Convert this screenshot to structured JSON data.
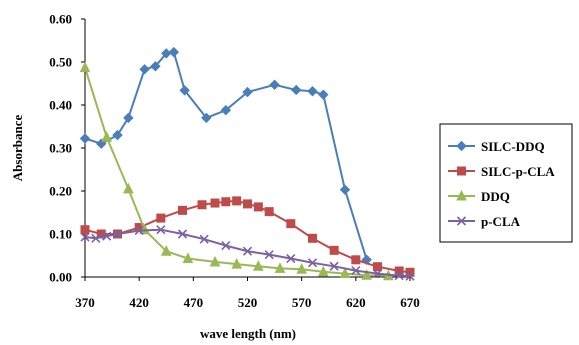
{
  "chart_data": {
    "type": "line",
    "xlabel": "wave length (nm)",
    "ylabel": "Absorbance",
    "xlim": [
      370,
      670
    ],
    "ylim": [
      0,
      0.6
    ],
    "x_ticks": [
      "370",
      "420",
      "470",
      "520",
      "570",
      "620",
      "670"
    ],
    "y_ticks": [
      "0.00",
      "0.10",
      "0.20",
      "0.30",
      "0.40",
      "0.50",
      "0.60"
    ],
    "grid": false,
    "legend_position": "right",
    "series": [
      {
        "name": "SILC-DDQ",
        "color": "#4a7ebb",
        "marker": "diamond",
        "points": [
          [
            370,
            0.322
          ],
          [
            385,
            0.31
          ],
          [
            400,
            0.33
          ],
          [
            410,
            0.37
          ],
          [
            425,
            0.483
          ],
          [
            435,
            0.49
          ],
          [
            445,
            0.52
          ],
          [
            452,
            0.523
          ],
          [
            462,
            0.434
          ],
          [
            482,
            0.37
          ],
          [
            500,
            0.388
          ],
          [
            520,
            0.43
          ],
          [
            545,
            0.447
          ],
          [
            565,
            0.435
          ],
          [
            580,
            0.432
          ],
          [
            590,
            0.424
          ],
          [
            610,
            0.203
          ],
          [
            630,
            0.04
          ]
        ]
      },
      {
        "name": "SILC-p-CLA",
        "color": "#be4b48",
        "marker": "square",
        "points": [
          [
            370,
            0.11
          ],
          [
            385,
            0.1
          ],
          [
            400,
            0.1
          ],
          [
            420,
            0.115
          ],
          [
            440,
            0.137
          ],
          [
            460,
            0.155
          ],
          [
            478,
            0.168
          ],
          [
            490,
            0.172
          ],
          [
            500,
            0.175
          ],
          [
            510,
            0.177
          ],
          [
            520,
            0.17
          ],
          [
            530,
            0.163
          ],
          [
            540,
            0.152
          ],
          [
            560,
            0.124
          ],
          [
            580,
            0.09
          ],
          [
            600,
            0.062
          ],
          [
            620,
            0.04
          ],
          [
            640,
            0.024
          ],
          [
            660,
            0.014
          ],
          [
            670,
            0.011
          ]
        ]
      },
      {
        "name": "DDQ",
        "color": "#98b954",
        "marker": "triangle",
        "points": [
          [
            370,
            0.487
          ],
          [
            390,
            0.325
          ],
          [
            410,
            0.205
          ],
          [
            425,
            0.11
          ],
          [
            445,
            0.06
          ],
          [
            465,
            0.043
          ],
          [
            490,
            0.035
          ],
          [
            510,
            0.03
          ],
          [
            530,
            0.025
          ],
          [
            550,
            0.02
          ],
          [
            570,
            0.018
          ],
          [
            590,
            0.012
          ],
          [
            610,
            0.008
          ],
          [
            630,
            0.004
          ],
          [
            650,
            0.003
          ]
        ]
      },
      {
        "name": "p-CLA",
        "color": "#7d60a0",
        "marker": "x",
        "points": [
          [
            370,
            0.093
          ],
          [
            380,
            0.09
          ],
          [
            390,
            0.095
          ],
          [
            400,
            0.1
          ],
          [
            420,
            0.108
          ],
          [
            440,
            0.11
          ],
          [
            460,
            0.1
          ],
          [
            480,
            0.088
          ],
          [
            500,
            0.073
          ],
          [
            520,
            0.06
          ],
          [
            540,
            0.052
          ],
          [
            560,
            0.043
          ],
          [
            580,
            0.033
          ],
          [
            600,
            0.025
          ],
          [
            620,
            0.015
          ],
          [
            640,
            0.008
          ],
          [
            660,
            0.003
          ],
          [
            670,
            0.002
          ]
        ]
      }
    ]
  }
}
